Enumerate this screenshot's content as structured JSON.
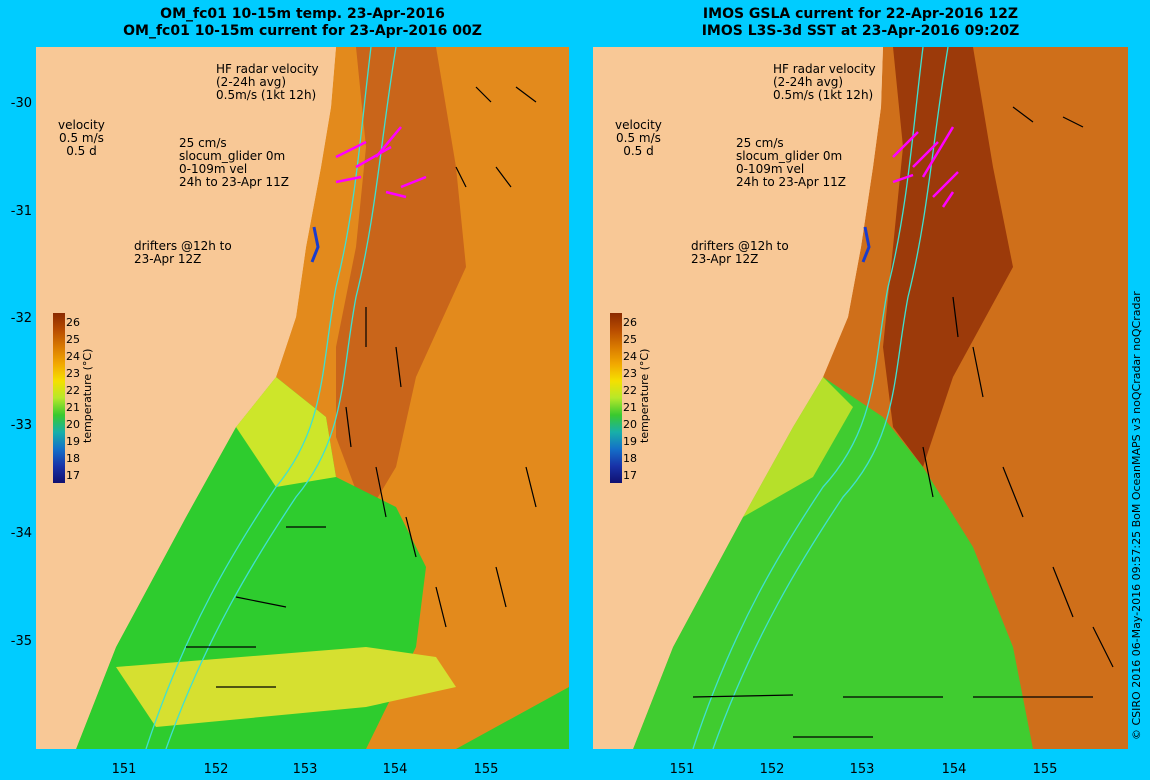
{
  "left_panel": {
    "title_line1": "OM_fc01 10-15m temp. 23-Apr-2016",
    "title_line2": "OM_fc01 10-15m current for 23-Apr-2016 00Z"
  },
  "right_panel": {
    "title_line1": "IMOS GSLA current for 22-Apr-2016 12Z",
    "title_line2": "IMOS L3S-3d SST at 23-Apr-2016 09:20Z"
  },
  "legend": {
    "hf_radar": [
      "HF radar velocity",
      "(2-24h avg)",
      "0.5m/s (1kt 12h)"
    ],
    "velocity": [
      "velocity",
      "0.5 m/s",
      "0.5 d"
    ],
    "glider": [
      "25 cm/s",
      "slocum_glider 0m",
      "0-109m vel",
      "24h to 23-Apr 11Z"
    ],
    "drifters": [
      "drifters @12h to",
      "23-Apr 12Z"
    ]
  },
  "y_ticks": [
    "-30",
    "-31",
    "-32",
    "-33",
    "-34",
    "-35"
  ],
  "x_ticks": [
    "151",
    "152",
    "153",
    "154",
    "155"
  ],
  "colorbar": {
    "title": "temperature (°C)",
    "ticks": [
      "26",
      "25",
      "24",
      "23",
      "22",
      "21",
      "20",
      "19",
      "18",
      "17"
    ],
    "colors": [
      "#8b2a00",
      "#b84c00",
      "#d97a00",
      "#f2a800",
      "#f5e000",
      "#b6e82a",
      "#39c92e",
      "#18b0a8",
      "#1470c8",
      "#1832a8",
      "#101070"
    ]
  },
  "credit": "© CSIRO 2016  06-May-2016 09:57:25 BoM OceanMAPS v3 noQCradar noQCradar",
  "colors": {
    "background": "#00ccff",
    "land": "#f8c896",
    "hf_radar_arrow": "#ff00ff",
    "glider_arrow": "#1a3ccc",
    "isobath": "#40e0d0"
  }
}
